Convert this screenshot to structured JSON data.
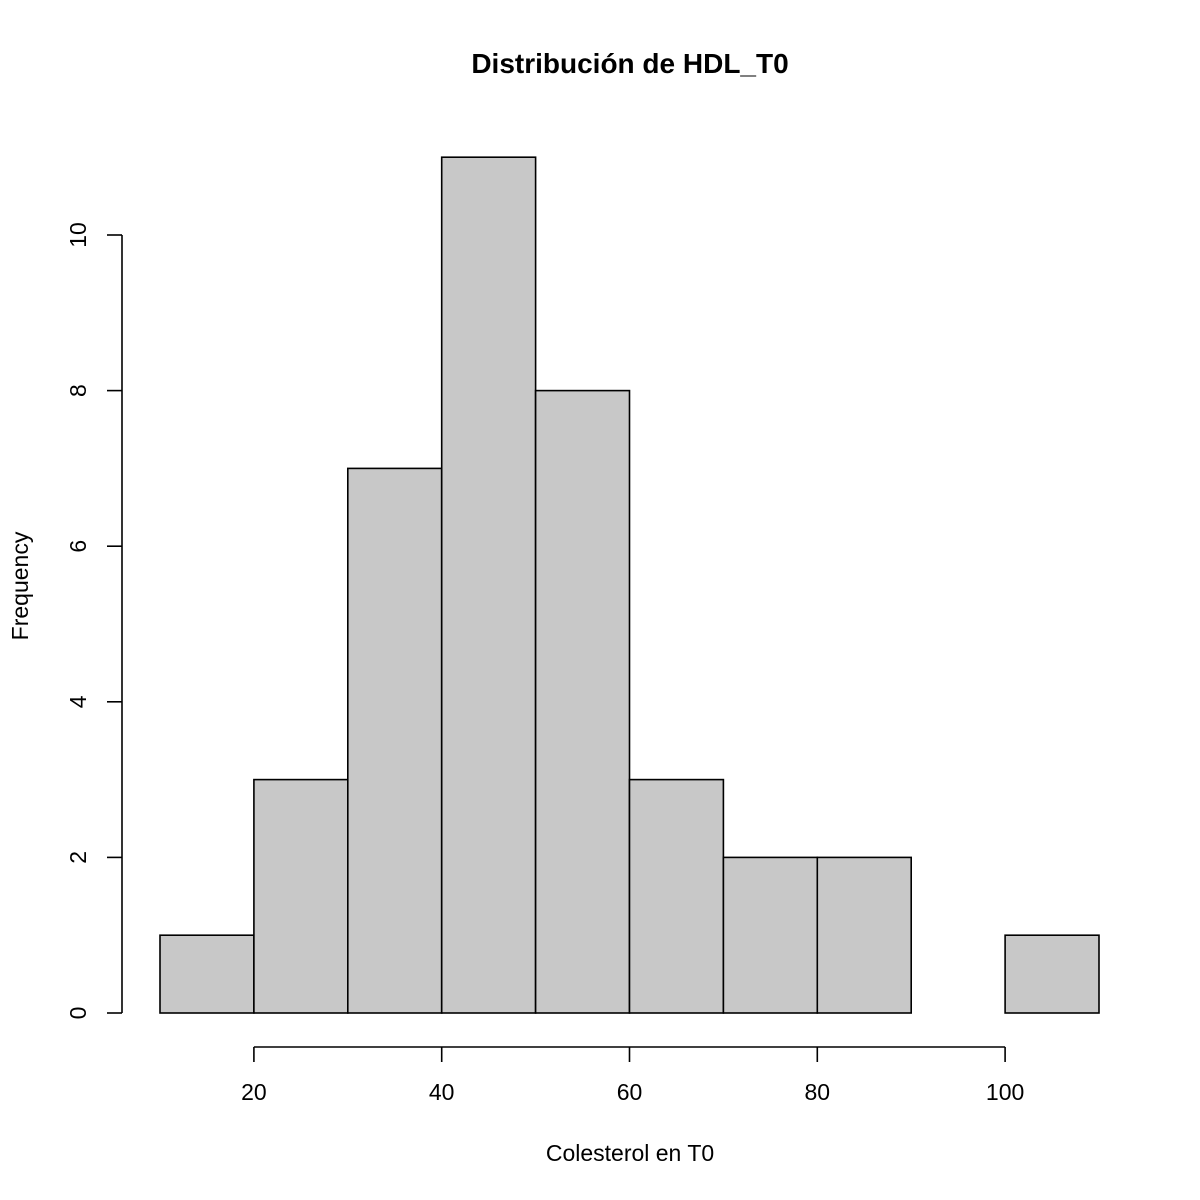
{
  "chart_data": {
    "type": "bar",
    "histogram": true,
    "title": "Distribución de HDL_T0",
    "xlabel": "Colesterol en T0",
    "ylabel": "Frequency",
    "bins": [
      {
        "from": 10,
        "to": 20,
        "count": 1
      },
      {
        "from": 20,
        "to": 30,
        "count": 3
      },
      {
        "from": 30,
        "to": 40,
        "count": 7
      },
      {
        "from": 40,
        "to": 50,
        "count": 11
      },
      {
        "from": 50,
        "to": 60,
        "count": 8
      },
      {
        "from": 60,
        "to": 70,
        "count": 3
      },
      {
        "from": 70,
        "to": 80,
        "count": 2
      },
      {
        "from": 80,
        "to": 90,
        "count": 2
      },
      {
        "from": 90,
        "to": 100,
        "count": 0
      },
      {
        "from": 100,
        "to": 110,
        "count": 1
      }
    ],
    "xlim": [
      10,
      110
    ],
    "ylim": [
      0,
      11
    ],
    "x_ticks": [
      "20",
      "40",
      "60",
      "80",
      "100"
    ],
    "y_ticks": [
      "0",
      "2",
      "4",
      "6",
      "8",
      "10"
    ],
    "grid": false,
    "legend": "none",
    "bar_color": "#c8c8c8"
  }
}
